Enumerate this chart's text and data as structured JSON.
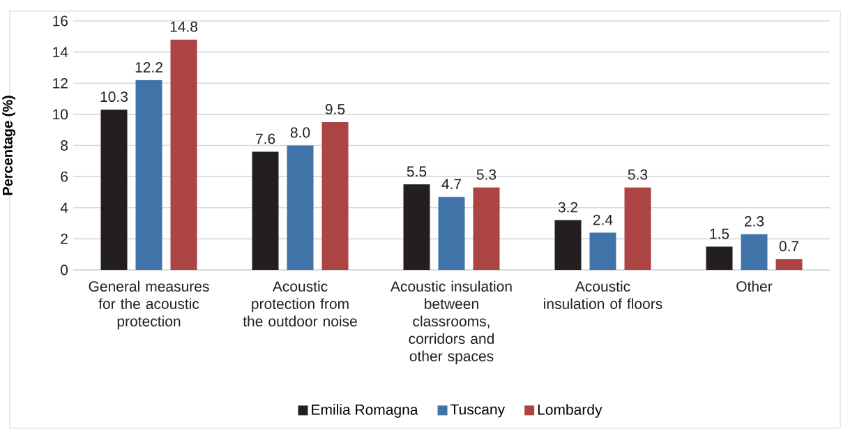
{
  "chart_data": {
    "type": "bar",
    "ylabel": "Percentage (%)",
    "categories": [
      "General measures for the acoustic protection",
      "Acoustic protection from the outdoor noise",
      "Acoustic insulation between classrooms, corridors and other spaces",
      "Acoustic insulation of floors",
      "Other"
    ],
    "series": [
      {
        "name": "Emilia Romagna",
        "color": "#231f20",
        "values": [
          10.3,
          7.6,
          5.5,
          3.2,
          1.5
        ],
        "value_labels": [
          "10.3",
          "7.6",
          "5.5",
          "3.2",
          "1.5"
        ]
      },
      {
        "name": "Tuscany",
        "color": "#4073a8",
        "values": [
          12.2,
          8.0,
          4.7,
          2.4,
          2.3
        ],
        "value_labels": [
          "12.2",
          "8.0",
          "4.7",
          "2.4",
          "2.3"
        ]
      },
      {
        "name": "Lombardy",
        "color": "#ab4442",
        "values": [
          14.8,
          9.5,
          5.3,
          5.3,
          0.7
        ],
        "value_labels": [
          "14.8",
          "9.5",
          "5.3",
          "5.3",
          "0.7"
        ]
      }
    ],
    "ylim": [
      0,
      16
    ],
    "yticks": [
      0,
      2,
      4,
      6,
      8,
      10,
      12,
      14,
      16
    ],
    "grid": "y",
    "legend": "bottom"
  }
}
